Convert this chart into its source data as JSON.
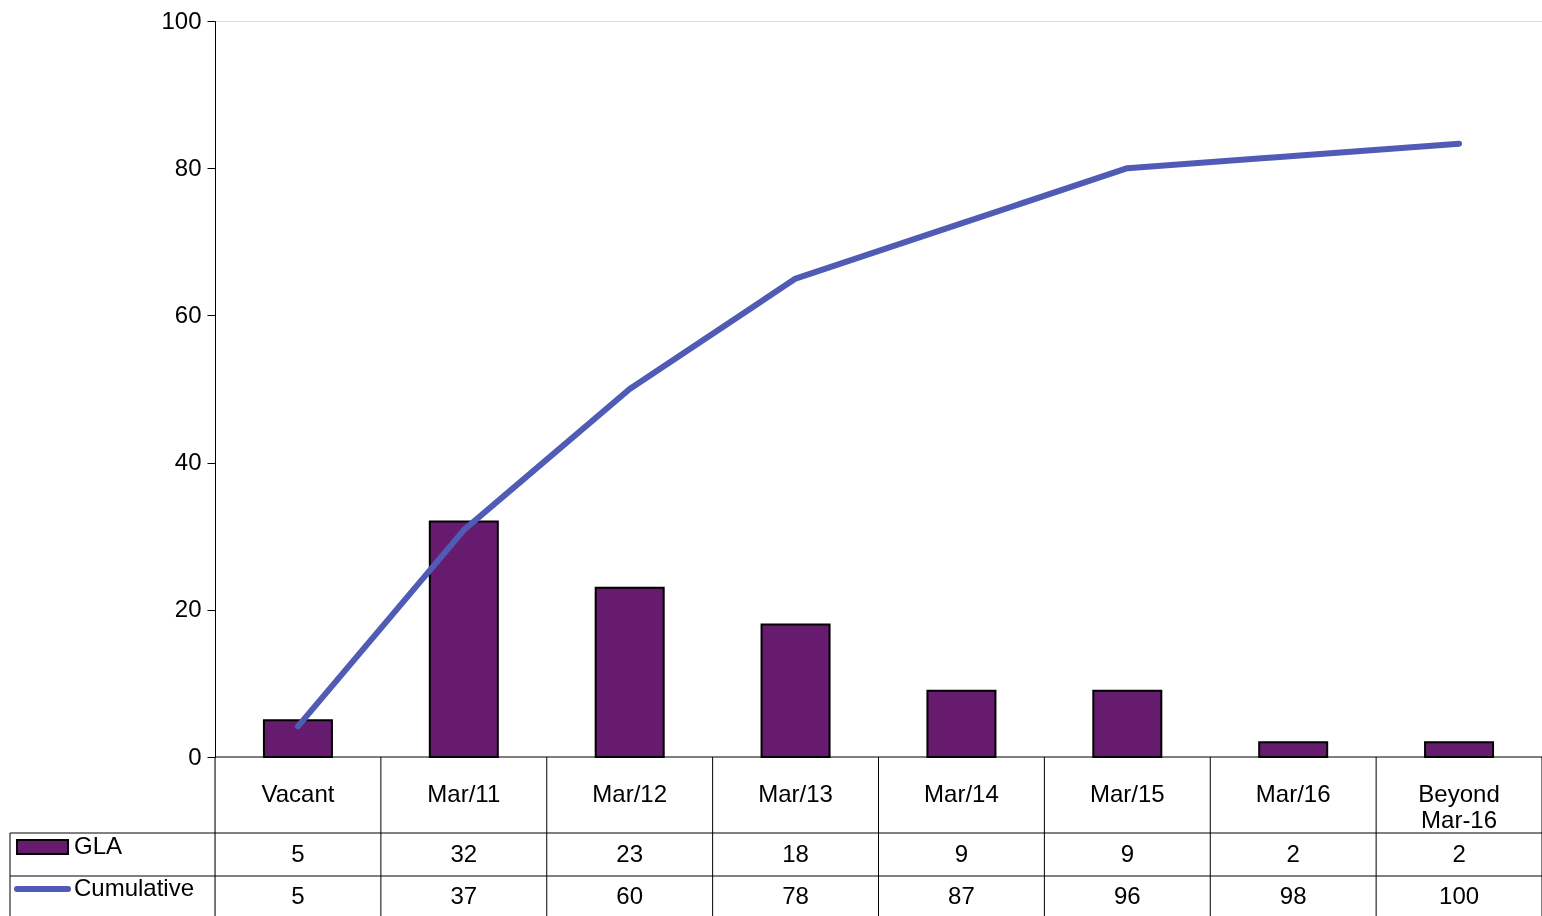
{
  "chart_data": {
    "type": "bar",
    "categories": [
      "Vacant",
      "Mar/11",
      "Mar/12",
      "Mar/13",
      "Mar/14",
      "Mar/15",
      "Mar/16",
      "Beyond\nMar-16"
    ],
    "series": [
      {
        "name": "GLA",
        "color": "#661b6e",
        "values": [
          5,
          32,
          23,
          18,
          9,
          9,
          2,
          2
        ]
      },
      {
        "name": "Cumulative",
        "type": "line",
        "color": "#4f5bb5",
        "axis": "y2",
        "values": [
          5,
          37,
          60,
          78,
          87,
          96,
          98,
          100
        ]
      }
    ],
    "ylim": [
      0,
      100
    ],
    "yticks": [
      0,
      20,
      40,
      60,
      80,
      100
    ],
    "y2lim": [
      0,
      120
    ],
    "grid": false,
    "legend": "bottom left",
    "data_labels": true
  }
}
